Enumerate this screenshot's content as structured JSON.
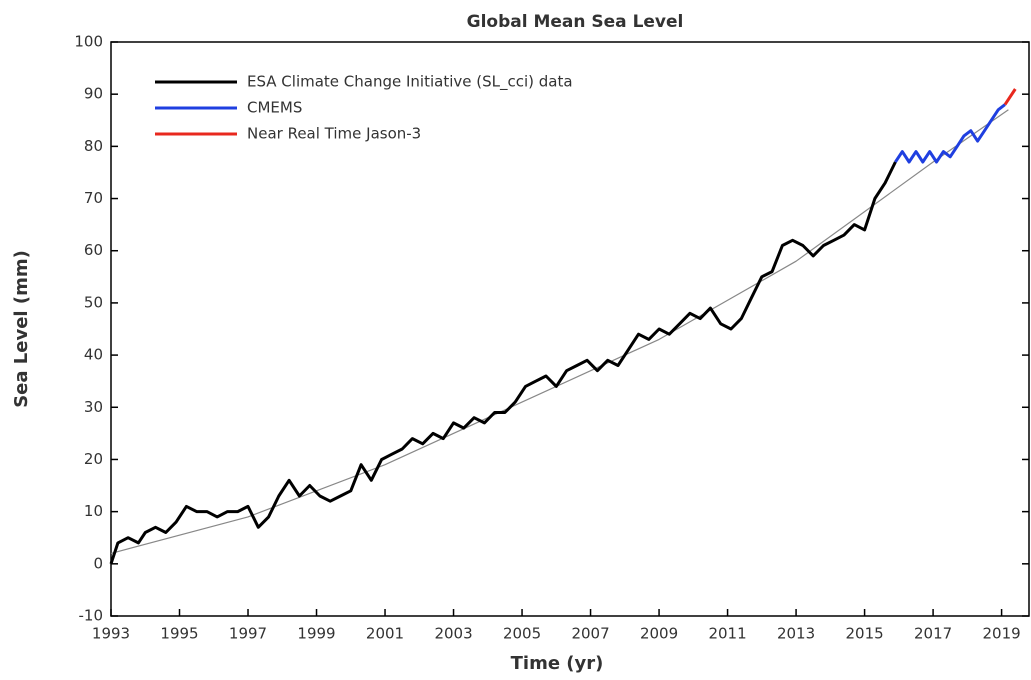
{
  "chart_data": {
    "type": "line",
    "title": "Global Mean Sea Level",
    "x_label": "Time (yr)",
    "y_label": "Sea Level (mm)",
    "xlim": [
      1993,
      2019.8
    ],
    "xticks": [
      1993,
      1995,
      1997,
      1999,
      2001,
      2003,
      2005,
      2007,
      2009,
      2011,
      2013,
      2015,
      2017,
      2019
    ],
    "ylim": [
      -10,
      100
    ],
    "yticks": [
      -10,
      0,
      10,
      20,
      30,
      40,
      50,
      60,
      70,
      80,
      90,
      100
    ],
    "legend": "upper left",
    "series": [
      {
        "name": "ESA Climate Change Initiative (SL_cci) data",
        "color": "#000000",
        "x": [
          1993.0,
          1993.2,
          1993.5,
          1993.8,
          1994.0,
          1994.3,
          1994.6,
          1994.9,
          1995.2,
          1995.5,
          1995.8,
          1996.1,
          1996.4,
          1996.7,
          1997.0,
          1997.3,
          1997.6,
          1997.9,
          1998.2,
          1998.5,
          1998.8,
          1999.1,
          1999.4,
          1999.7,
          2000.0,
          2000.3,
          2000.6,
          2000.9,
          2001.2,
          2001.5,
          2001.8,
          2002.1,
          2002.4,
          2002.7,
          2003.0,
          2003.3,
          2003.6,
          2003.9,
          2004.2,
          2004.5,
          2004.8,
          2005.1,
          2005.4,
          2005.7,
          2006.0,
          2006.3,
          2006.6,
          2006.9,
          2007.2,
          2007.5,
          2007.8,
          2008.1,
          2008.4,
          2008.7,
          2009.0,
          2009.3,
          2009.6,
          2009.9,
          2010.2,
          2010.5,
          2010.8,
          2011.1,
          2011.4,
          2011.7,
          2012.0,
          2012.3,
          2012.6,
          2012.9,
          2013.2,
          2013.5,
          2013.8,
          2014.1,
          2014.4,
          2014.7,
          2015.0,
          2015.3,
          2015.6,
          2015.9
        ],
        "values": [
          0,
          4,
          5,
          4,
          6,
          7,
          6,
          8,
          11,
          10,
          10,
          9,
          10,
          10,
          11,
          7,
          9,
          13,
          16,
          13,
          15,
          13,
          12,
          13,
          14,
          19,
          16,
          20,
          21,
          22,
          24,
          23,
          25,
          24,
          27,
          26,
          28,
          27,
          29,
          29,
          31,
          34,
          35,
          36,
          34,
          37,
          38,
          39,
          37,
          39,
          38,
          41,
          44,
          43,
          45,
          44,
          46,
          48,
          47,
          49,
          46,
          45,
          47,
          51,
          55,
          56,
          61,
          62,
          61,
          59,
          61,
          62,
          63,
          65,
          64,
          70,
          73,
          77
        ]
      },
      {
        "name": "CMEMS",
        "color": "#1f3fe0",
        "x": [
          2015.9,
          2016.1,
          2016.3,
          2016.5,
          2016.7,
          2016.9,
          2017.1,
          2017.3,
          2017.5,
          2017.7,
          2017.9,
          2018.1,
          2018.3,
          2018.5,
          2018.7,
          2018.9,
          2019.1
        ],
        "values": [
          77,
          79,
          77,
          79,
          77,
          79,
          77,
          79,
          78,
          80,
          82,
          83,
          81,
          83,
          85,
          87,
          88
        ]
      },
      {
        "name": "Near Real Time Jason-3",
        "color": "#e8281e",
        "x": [
          2019.1,
          2019.4
        ],
        "values": [
          88,
          91
        ]
      },
      {
        "color": "#888888",
        "x": [
          1993,
          1997,
          2001,
          2005,
          2009,
          2013,
          2017,
          2019.2
        ],
        "values": [
          2,
          9,
          19,
          31,
          43,
          58,
          77,
          87
        ]
      }
    ]
  }
}
